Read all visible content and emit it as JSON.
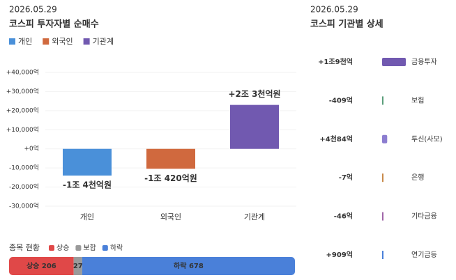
{
  "chart_data": {
    "type": "bar",
    "date": "2026.05.29",
    "title": "코스피 투자자별 순매수",
    "categories": [
      "개인",
      "외국인",
      "기관계"
    ],
    "values": [
      -14000,
      -10420,
      23000
    ],
    "value_labels": [
      "-1조 4천억원",
      "-1조 420억원",
      "+2조 3천억원"
    ],
    "colors": [
      "#4a90d9",
      "#d0693e",
      "#7159b0"
    ],
    "ylim": [
      -30000,
      40000
    ],
    "yticks": [
      {
        "value": 40000,
        "label": "+40,000억"
      },
      {
        "value": 30000,
        "label": "+30,000억"
      },
      {
        "value": 20000,
        "label": "+20,000억"
      },
      {
        "value": 10000,
        "label": "+10,000억"
      },
      {
        "value": 0,
        "label": "+0억"
      },
      {
        "value": -10000,
        "label": "-10,000억"
      },
      {
        "value": -20000,
        "label": "-20,000억"
      },
      {
        "value": -30000,
        "label": "-30,000억"
      }
    ]
  },
  "institutions": {
    "date": "2026.05.29",
    "title": "코스피 기관별 상세",
    "items": [
      {
        "name": "금융투자",
        "value": 19000,
        "value_label": "+1조9천억",
        "color": "#7159b0"
      },
      {
        "name": "보험",
        "value": -409,
        "value_label": "-409억",
        "color": "#5a9e7a"
      },
      {
        "name": "투신(사모)",
        "value": 4084,
        "value_label": "+4천84억",
        "color": "#8c7dd0"
      },
      {
        "name": "은행",
        "value": -7,
        "value_label": "-7억",
        "color": "#c88a4a"
      },
      {
        "name": "기타금융",
        "value": -46,
        "value_label": "-46억",
        "color": "#a066a8"
      },
      {
        "name": "연기금등",
        "value": 909,
        "value_label": "+909억",
        "color": "#4a80d9"
      }
    ]
  },
  "stock_status": {
    "title": "종목 현황",
    "items": [
      {
        "name": "상승",
        "count": 206,
        "color": "#e04848"
      },
      {
        "name": "보합",
        "count": 27,
        "color": "#9a9a9a"
      },
      {
        "name": "하락",
        "count": 678,
        "color": "#4a80d9"
      }
    ]
  }
}
